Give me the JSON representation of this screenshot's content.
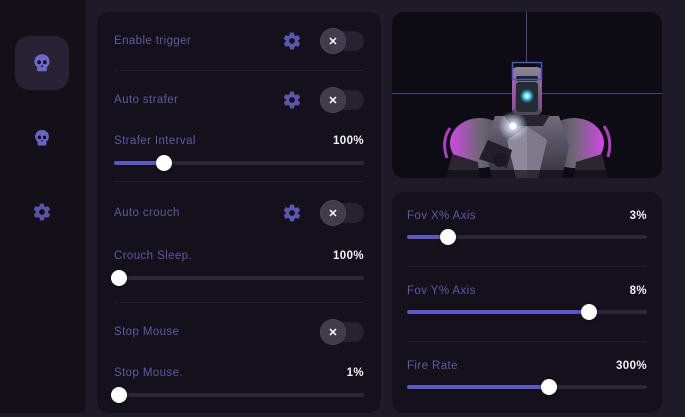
{
  "colors": {
    "accent": "#5d57c3",
    "magenta": "#c93fdd",
    "label": "#605a9e",
    "value": "#f2f0f7",
    "panel": "#14111c",
    "background": "#1e1a28"
  },
  "icons": {
    "toggle_off_glyph": "✕"
  },
  "sidebar": {
    "items": [
      {
        "icon": "skull-icon",
        "active": true
      },
      {
        "icon": "skull-icon",
        "active": false
      },
      {
        "icon": "gear-icon",
        "active": false
      }
    ]
  },
  "left_panel": {
    "rows": [
      {
        "type": "toggle",
        "label": "Enable trigger",
        "gear": true,
        "state": "off"
      },
      {
        "type": "toggle",
        "label": "Auto strafer",
        "gear": true,
        "state": "off"
      },
      {
        "type": "slider",
        "label": "Strafer Interval",
        "value": "100%",
        "percent": 20
      },
      {
        "type": "toggle",
        "label": "Auto crouch",
        "gear": true,
        "state": "off"
      },
      {
        "type": "slider",
        "label": "Crouch Sleep.",
        "value": "100%",
        "percent": 2
      },
      {
        "type": "toggle",
        "label": "Stop Mouse",
        "gear": false,
        "state": "off"
      },
      {
        "type": "slider",
        "label": "Stop Mouse.",
        "value": "1%",
        "percent": 2
      }
    ]
  },
  "right_panel": {
    "rows": [
      {
        "type": "slider",
        "label": "Fov X% Axis",
        "value": "3%",
        "percent": 17
      },
      {
        "type": "slider",
        "label": "Fov Y% Axis",
        "value": "8%",
        "percent": 76
      },
      {
        "type": "slider",
        "label": "Fire Rate",
        "value": "300%",
        "percent": 59
      }
    ]
  },
  "preview": {
    "subject": "robot-character",
    "overlay": "crosshair-and-head-target-box"
  }
}
